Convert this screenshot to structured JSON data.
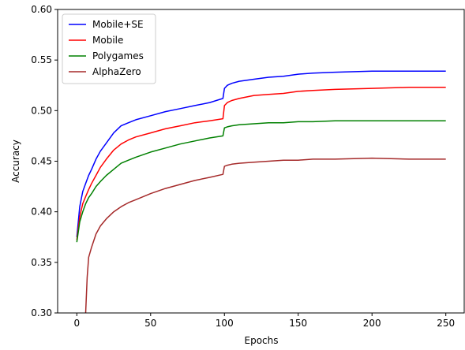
{
  "chart_data": {
    "type": "line",
    "title": "",
    "xlabel": "Epochs",
    "ylabel": "Accuracy",
    "xlim": [
      -13,
      263
    ],
    "ylim": [
      0.3,
      0.6
    ],
    "x_ticks": [
      0,
      50,
      100,
      150,
      200,
      250
    ],
    "x_tick_labels": [
      "0",
      "50",
      "100",
      "150",
      "200",
      "250"
    ],
    "y_ticks": [
      0.3,
      0.35,
      0.4,
      0.45,
      0.5,
      0.55,
      0.6
    ],
    "y_tick_labels": [
      "0.30",
      "0.35",
      "0.40",
      "0.45",
      "0.50",
      "0.55",
      "0.60"
    ],
    "grid": false,
    "legend_position": "top-left",
    "series": [
      {
        "name": "Mobile+SE",
        "color": "#0000ff",
        "x": [
          0,
          2,
          4,
          6,
          8,
          10,
          13,
          16,
          20,
          25,
          30,
          35,
          40,
          50,
          60,
          70,
          80,
          90,
          99,
          100,
          102,
          105,
          110,
          120,
          130,
          140,
          150,
          160,
          175,
          200,
          225,
          250
        ],
        "y": [
          0.375,
          0.405,
          0.42,
          0.428,
          0.436,
          0.442,
          0.452,
          0.46,
          0.468,
          0.478,
          0.485,
          0.488,
          0.491,
          0.495,
          0.499,
          0.502,
          0.505,
          0.508,
          0.512,
          0.522,
          0.525,
          0.527,
          0.529,
          0.531,
          0.533,
          0.534,
          0.536,
          0.537,
          0.538,
          0.539,
          0.539,
          0.539
        ]
      },
      {
        "name": "Mobile",
        "color": "#ff0000",
        "x": [
          0,
          2,
          4,
          6,
          8,
          10,
          13,
          16,
          20,
          25,
          30,
          35,
          40,
          50,
          60,
          70,
          80,
          90,
          99,
          100,
          102,
          105,
          110,
          120,
          130,
          140,
          150,
          160,
          175,
          200,
          225,
          250
        ],
        "y": [
          0.372,
          0.395,
          0.408,
          0.415,
          0.422,
          0.428,
          0.436,
          0.444,
          0.452,
          0.461,
          0.467,
          0.471,
          0.474,
          0.478,
          0.482,
          0.485,
          0.488,
          0.49,
          0.492,
          0.505,
          0.508,
          0.51,
          0.512,
          0.515,
          0.516,
          0.517,
          0.519,
          0.52,
          0.521,
          0.522,
          0.523,
          0.523
        ]
      },
      {
        "name": "Polygames",
        "color": "#008000",
        "x": [
          0,
          2,
          4,
          6,
          8,
          10,
          13,
          16,
          20,
          25,
          30,
          35,
          40,
          50,
          60,
          70,
          80,
          90,
          99,
          100,
          102,
          105,
          110,
          120,
          130,
          140,
          150,
          160,
          175,
          200,
          225,
          250
        ],
        "y": [
          0.37,
          0.39,
          0.4,
          0.408,
          0.414,
          0.418,
          0.425,
          0.43,
          0.436,
          0.442,
          0.448,
          0.451,
          0.454,
          0.459,
          0.463,
          0.467,
          0.47,
          0.473,
          0.475,
          0.483,
          0.484,
          0.485,
          0.486,
          0.487,
          0.488,
          0.488,
          0.489,
          0.489,
          0.49,
          0.49,
          0.49,
          0.49
        ]
      },
      {
        "name": "AlphaZero",
        "color": "#a52a2a",
        "x": [
          6,
          7,
          8,
          10,
          13,
          16,
          20,
          25,
          30,
          35,
          40,
          50,
          60,
          70,
          80,
          90,
          99,
          100,
          102,
          105,
          110,
          120,
          130,
          140,
          150,
          160,
          175,
          200,
          225,
          250
        ],
        "y": [
          0.3,
          0.335,
          0.355,
          0.365,
          0.378,
          0.386,
          0.393,
          0.4,
          0.405,
          0.409,
          0.412,
          0.418,
          0.423,
          0.427,
          0.431,
          0.434,
          0.437,
          0.445,
          0.446,
          0.447,
          0.448,
          0.449,
          0.45,
          0.451,
          0.451,
          0.452,
          0.452,
          0.453,
          0.452,
          0.452
        ]
      }
    ]
  }
}
